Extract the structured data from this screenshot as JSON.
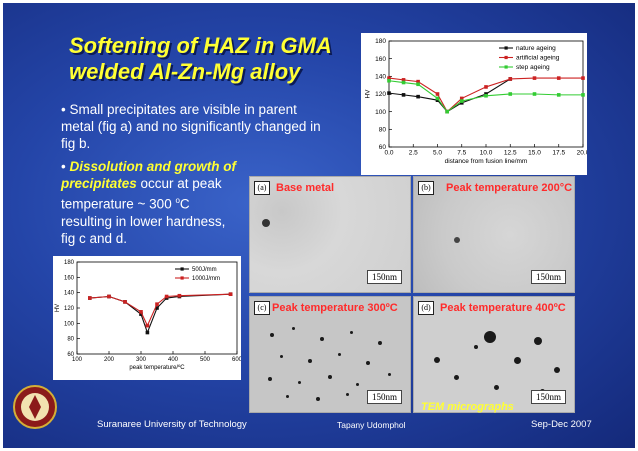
{
  "slide": {
    "title_line1": "Softening of HAZ in GMA",
    "title_line2": "welded Al-Zn-Mg alloy",
    "bullet1": "• Small precipitates are visible in parent metal (fig a) and no significantly changed in fig b.",
    "bullet2_prefix": "• ",
    "bullet2_highlight": "Dissolution and growth of precipitates",
    "bullet2_rest_a": " occur at peak temperature ~ 300 ",
    "bullet2_sup": "o",
    "bullet2_rest_b": "C resulting in lower hardness, fig c and d.",
    "tem_label": "TEM micrographs",
    "footer_left": "Suranaree University of Technology",
    "footer_mid": "Tapany Udomphol",
    "footer_right": "Sep-Dec 2007"
  },
  "micrographs": [
    {
      "letter": "(a)",
      "caption": "Base metal",
      "scale": "150nm"
    },
    {
      "letter": "(b)",
      "caption": "Peak temperature 200°C",
      "scale": "150nm"
    },
    {
      "letter": "(c)",
      "caption": "Peak temperature 300ºC",
      "scale": "150nm"
    },
    {
      "letter": "(d)",
      "caption": "Peak temperature 400ºC",
      "scale": "150nm"
    }
  ],
  "chart_data": [
    {
      "type": "line",
      "xlabel": "distance from fusion line/mm",
      "ylabel": "HV",
      "xlim": [
        0,
        20
      ],
      "ylim": [
        60,
        180
      ],
      "xticks": [
        "0.0",
        "2.5",
        "5.0",
        "7.5",
        "10.0",
        "12.5",
        "15.0",
        "17.5",
        "20.0"
      ],
      "yticks": [
        "60",
        "80",
        "100",
        "120",
        "140",
        "160",
        "180"
      ],
      "legend_position": "top-right",
      "series": [
        {
          "name": "nature ageing",
          "color": "#111111",
          "x": [
            0,
            1.5,
            3,
            5,
            6,
            7.5,
            10,
            12.5
          ],
          "values": [
            121,
            119,
            117,
            113,
            100,
            110,
            120,
            137
          ]
        },
        {
          "name": "artificial ageing",
          "color": "#cc2222",
          "x": [
            0,
            1.5,
            3,
            5,
            6,
            7.5,
            10,
            12.5,
            15,
            17.5,
            20
          ],
          "values": [
            138,
            136,
            134,
            120,
            100,
            115,
            128,
            137,
            138,
            138,
            138
          ]
        },
        {
          "name": "step ageing",
          "color": "#33cc33",
          "x": [
            0,
            1.5,
            3,
            5,
            6,
            7.5,
            10,
            12.5,
            15,
            17.5,
            20
          ],
          "values": [
            135,
            133,
            131,
            115,
            100,
            112,
            118,
            120,
            120,
            119,
            119
          ]
        }
      ]
    },
    {
      "type": "line",
      "xlabel": "peak temperature/ºC",
      "ylabel": "HV",
      "xlim": [
        100,
        600
      ],
      "ylim": [
        60,
        180
      ],
      "xticks": [
        "100",
        "200",
        "300",
        "400",
        "500",
        "600"
      ],
      "yticks": [
        "60",
        "80",
        "100",
        "120",
        "140",
        "160",
        "180"
      ],
      "legend_position": "top-right",
      "series": [
        {
          "name": "500J/mm",
          "color": "#111111",
          "x": [
            140,
            200,
            250,
            300,
            320,
            350,
            380,
            420,
            580
          ],
          "values": [
            133,
            135,
            128,
            112,
            88,
            120,
            133,
            135,
            138
          ]
        },
        {
          "name": "1000J/mm",
          "color": "#cc2222",
          "x": [
            140,
            200,
            250,
            300,
            320,
            350,
            380,
            420,
            580
          ],
          "values": [
            133,
            135,
            128,
            115,
            97,
            125,
            135,
            136,
            138
          ]
        }
      ]
    }
  ]
}
